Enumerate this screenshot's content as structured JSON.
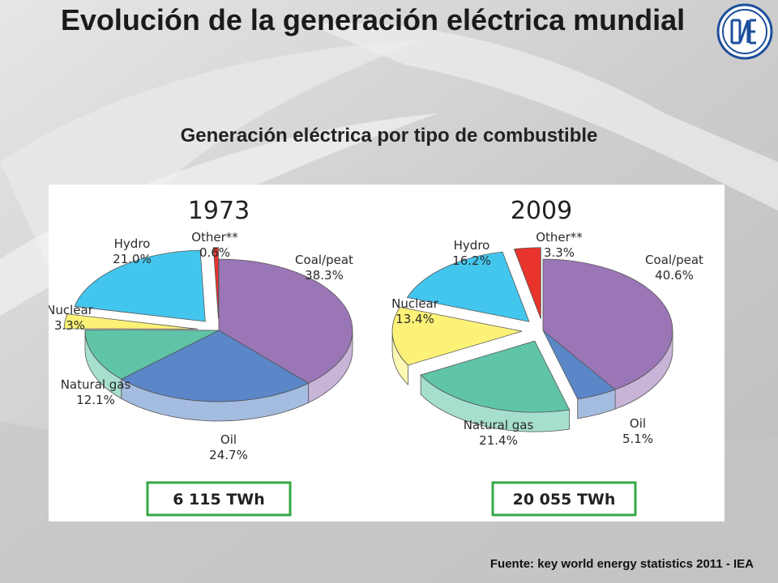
{
  "slide": {
    "title": "Evolución de la generación eléctrica mundial",
    "subtitle": "Generación eléctrica por tipo de combustible",
    "source": "Fuente: key world energy statistics 2011 - IEA",
    "logo_text": "CNEA"
  },
  "colors": {
    "coal": "#9b76b6",
    "oil": "#5b86c8",
    "gas": "#5fc4a8",
    "nuclear": "#fbf277",
    "hydro": "#43c6ee",
    "other": "#e8342c",
    "total_box": "#36a845"
  },
  "chart_data": [
    {
      "type": "pie",
      "title": "1973",
      "total": "6 115 TWh",
      "slices": [
        {
          "name": "Coal/peat",
          "value": 38.3,
          "label": "38.3%",
          "color_key": "coal"
        },
        {
          "name": "Oil",
          "value": 24.7,
          "label": "24.7%",
          "color_key": "oil"
        },
        {
          "name": "Natural gas",
          "value": 12.1,
          "label": "12.1%",
          "color_key": "gas"
        },
        {
          "name": "Nuclear",
          "value": 3.3,
          "label": "3.3%",
          "color_key": "nuclear"
        },
        {
          "name": "Hydro",
          "value": 21.0,
          "label": "21.0%",
          "color_key": "hydro"
        },
        {
          "name": "Other**",
          "value": 0.6,
          "label": "0.6%",
          "color_key": "other"
        }
      ]
    },
    {
      "type": "pie",
      "title": "2009",
      "total": "20 055 TWh",
      "slices": [
        {
          "name": "Coal/peat",
          "value": 40.6,
          "label": "40.6%",
          "color_key": "coal"
        },
        {
          "name": "Oil",
          "value": 5.1,
          "label": "5.1%",
          "color_key": "oil"
        },
        {
          "name": "Natural gas",
          "value": 21.4,
          "label": "21.4%",
          "color_key": "gas"
        },
        {
          "name": "Nuclear",
          "value": 13.4,
          "label": "13.4%",
          "color_key": "nuclear"
        },
        {
          "name": "Hydro",
          "value": 16.2,
          "label": "16.2%",
          "color_key": "hydro"
        },
        {
          "name": "Other**",
          "value": 3.3,
          "label": "3.3%",
          "color_key": "other"
        }
      ]
    }
  ]
}
